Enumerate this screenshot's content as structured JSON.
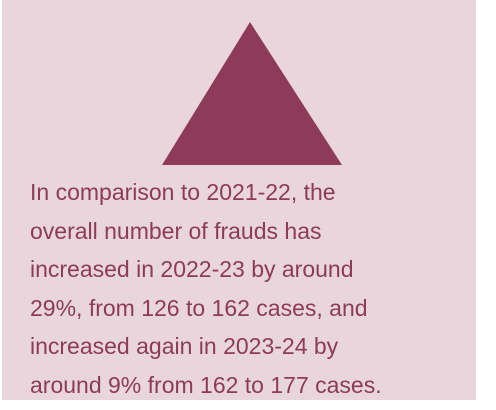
{
  "lines": [
    "In comparison to 2021-22, the",
    "overall number of frauds has",
    "increased in 2022-23 by around",
    "29%, from 126 to 162 cases, and",
    "increased again in 2023-24 by",
    "around 9% from 162 to 177 cases."
  ]
}
